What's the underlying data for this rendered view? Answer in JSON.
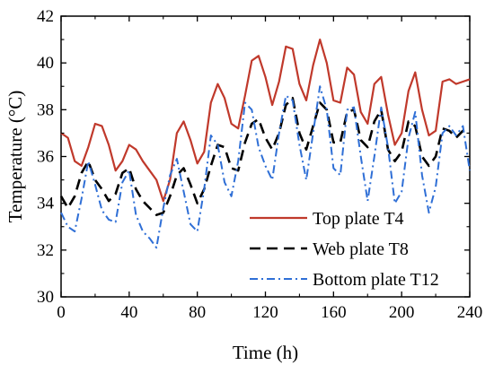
{
  "chart_data": {
    "type": "line",
    "title": "",
    "xlabel": "Time (h)",
    "ylabel": "Temperature (°C)",
    "xlim": [
      0,
      240
    ],
    "ylim": [
      30,
      42
    ],
    "xticks": [
      0,
      40,
      80,
      120,
      160,
      200,
      240
    ],
    "yticks": [
      30,
      32,
      34,
      36,
      38,
      40,
      42
    ],
    "grid": false,
    "legend_position": "bottom-right",
    "series": [
      {
        "name": "Top plate T4",
        "color": "#c0392b",
        "dash": "solid",
        "x": [
          0,
          4,
          8,
          12,
          16,
          20,
          24,
          28,
          32,
          36,
          40,
          44,
          48,
          52,
          56,
          60,
          64,
          68,
          72,
          76,
          80,
          84,
          88,
          92,
          96,
          100,
          104,
          108,
          112,
          116,
          120,
          124,
          128,
          132,
          136,
          140,
          144,
          148,
          152,
          156,
          160,
          164,
          168,
          172,
          176,
          180,
          184,
          188,
          192,
          196,
          200,
          204,
          208,
          212,
          216,
          220,
          224,
          228,
          232,
          236,
          240
        ],
        "y": [
          37.0,
          36.8,
          35.8,
          35.6,
          36.4,
          37.4,
          37.3,
          36.5,
          35.4,
          35.8,
          36.5,
          36.3,
          35.8,
          35.4,
          35.0,
          34.1,
          35.0,
          37.0,
          37.5,
          36.7,
          35.7,
          36.2,
          38.3,
          39.1,
          38.5,
          37.4,
          37.2,
          38.6,
          40.1,
          40.3,
          39.4,
          38.2,
          39.2,
          40.7,
          40.6,
          39.1,
          38.4,
          39.9,
          41.0,
          40.0,
          38.4,
          38.3,
          39.8,
          39.5,
          37.9,
          37.4,
          39.1,
          39.4,
          37.8,
          36.5,
          37.0,
          38.8,
          39.6,
          38.0,
          36.9,
          37.1,
          39.2,
          39.3,
          39.1,
          39.2,
          39.3
        ]
      },
      {
        "name": "Web plate T8",
        "color": "#000000",
        "dash": "dashed",
        "x": [
          0,
          4,
          8,
          12,
          16,
          20,
          24,
          28,
          32,
          36,
          40,
          44,
          48,
          52,
          56,
          60,
          64,
          68,
          72,
          76,
          80,
          84,
          88,
          92,
          96,
          100,
          104,
          108,
          112,
          116,
          120,
          124,
          128,
          132,
          136,
          140,
          144,
          148,
          152,
          156,
          160,
          164,
          168,
          172,
          176,
          180,
          184,
          188,
          192,
          196,
          200,
          204,
          208,
          212,
          216,
          220,
          224,
          228,
          232,
          236,
          240
        ],
        "y": [
          34.3,
          33.8,
          34.3,
          35.3,
          35.8,
          35.0,
          34.6,
          34.1,
          34.4,
          35.3,
          35.5,
          34.6,
          34.1,
          33.8,
          33.5,
          33.6,
          34.3,
          35.2,
          35.5,
          34.8,
          34.0,
          34.6,
          35.6,
          36.5,
          36.4,
          35.5,
          35.4,
          36.6,
          37.4,
          37.6,
          36.8,
          36.3,
          37.0,
          38.2,
          38.5,
          37.0,
          36.3,
          37.3,
          38.3,
          38.0,
          36.6,
          36.6,
          37.9,
          38.0,
          36.7,
          36.4,
          37.5,
          38.0,
          36.3,
          35.8,
          36.2,
          37.5,
          37.3,
          36.0,
          35.6,
          36.0,
          37.2,
          37.1,
          36.8,
          37.1,
          37.0
        ]
      },
      {
        "name": "Bottom plate T12",
        "color": "#2f6fd6",
        "dash": "dashdot",
        "x": [
          0,
          4,
          8,
          12,
          16,
          20,
          24,
          28,
          32,
          36,
          40,
          44,
          48,
          52,
          56,
          60,
          64,
          68,
          72,
          76,
          80,
          84,
          88,
          92,
          96,
          100,
          104,
          108,
          112,
          116,
          120,
          124,
          128,
          132,
          136,
          140,
          144,
          148,
          152,
          156,
          160,
          164,
          168,
          172,
          176,
          180,
          184,
          188,
          192,
          196,
          200,
          204,
          208,
          212,
          216,
          220,
          224,
          228,
          232,
          236,
          240
        ],
        "y": [
          33.6,
          33.0,
          32.8,
          34.2,
          35.8,
          34.8,
          33.7,
          33.3,
          33.2,
          34.9,
          35.4,
          33.5,
          32.8,
          32.5,
          32.1,
          33.8,
          35.2,
          35.9,
          34.5,
          33.1,
          32.8,
          34.6,
          36.9,
          36.5,
          34.9,
          34.3,
          35.8,
          38.3,
          38.0,
          36.4,
          35.6,
          35.0,
          37.0,
          38.6,
          38.4,
          36.5,
          35.0,
          37.0,
          39.0,
          38.0,
          35.5,
          35.2,
          38.0,
          38.1,
          36.0,
          34.1,
          36.0,
          38.1,
          36.4,
          34.0,
          34.5,
          36.8,
          37.9,
          35.2,
          33.6,
          34.7,
          37.0,
          37.3,
          36.9,
          37.3,
          35.4
        ]
      }
    ]
  }
}
